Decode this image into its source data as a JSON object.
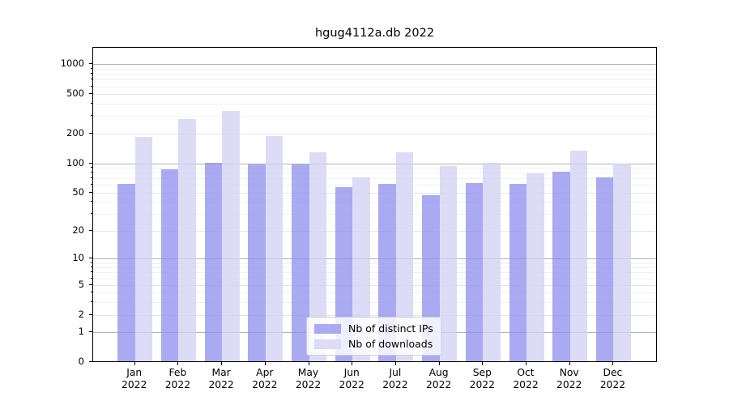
{
  "chart_data": {
    "type": "bar",
    "title": "hgug4112a.db 2022",
    "categories": [
      "Jan",
      "Feb",
      "Mar",
      "Apr",
      "May",
      "Jun",
      "Jul",
      "Aug",
      "Sep",
      "Oct",
      "Nov",
      "Dec"
    ],
    "x_year": "2022",
    "series": [
      {
        "name": "Nb of distinct IPs",
        "color": "#aaaaf2",
        "values": [
          60,
          85,
          99,
          96,
          96,
          56,
          60,
          46,
          62,
          60,
          81,
          71
        ]
      },
      {
        "name": "Nb of downloads",
        "color": "#dcdcf7",
        "values": [
          182,
          275,
          330,
          186,
          126,
          71,
          126,
          92,
          100,
          78,
          131,
          98
        ]
      }
    ],
    "y_axis": {
      "scale": "log1p",
      "ticks": [
        0,
        1,
        2,
        5,
        10,
        20,
        50,
        100,
        200,
        500,
        1000
      ],
      "minor_gridlines": [
        3,
        4,
        6,
        7,
        8,
        9,
        30,
        40,
        60,
        70,
        80,
        90,
        300,
        400,
        600,
        700,
        800,
        900
      ],
      "emphasized_gridlines": [
        1,
        10,
        100,
        1000
      ],
      "ylim": [
        0,
        1470
      ]
    },
    "legend": {
      "position": "lower center"
    },
    "palette": {
      "decade_grid": "#b3b3b3",
      "major_grid": "#e5e5e5",
      "minor_grid": "#f1f1f1",
      "axis": "#000000",
      "legend_border": "#cccccc"
    }
  }
}
